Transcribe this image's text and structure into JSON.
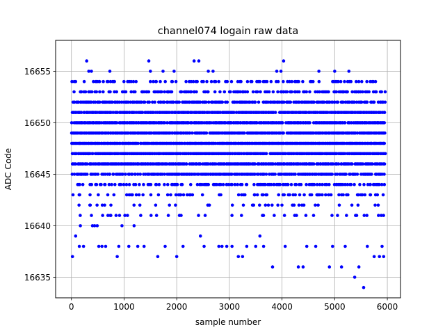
{
  "chart_data": {
    "type": "scatter",
    "title": "channel074 logain raw data",
    "xlabel": "sample number",
    "ylabel": "ADC Code",
    "xlim": [
      -300,
      6250
    ],
    "ylim": [
      16633,
      16658
    ],
    "xticks": [
      0,
      1000,
      2000,
      3000,
      4000,
      5000,
      6000
    ],
    "yticks": [
      16635,
      16640,
      16645,
      16650,
      16655
    ],
    "grid": true,
    "marker_color": "#0000ff",
    "n_samples": 5950,
    "dense_levels": [
      16641,
      16642,
      16643,
      16644,
      16645,
      16646,
      16647,
      16648,
      16649,
      16650,
      16651,
      16652,
      16653,
      16654
    ],
    "sparse_points": [
      {
        "x": 20,
        "y": 16637
      },
      {
        "x": 80,
        "y": 16639
      },
      {
        "x": 150,
        "y": 16638
      },
      {
        "x": 170,
        "y": 16640
      },
      {
        "x": 230,
        "y": 16638
      },
      {
        "x": 290,
        "y": 16656
      },
      {
        "x": 330,
        "y": 16655
      },
      {
        "x": 380,
        "y": 16655
      },
      {
        "x": 400,
        "y": 16640
      },
      {
        "x": 440,
        "y": 16640
      },
      {
        "x": 490,
        "y": 16640
      },
      {
        "x": 520,
        "y": 16638
      },
      {
        "x": 580,
        "y": 16638
      },
      {
        "x": 650,
        "y": 16638
      },
      {
        "x": 730,
        "y": 16655
      },
      {
        "x": 870,
        "y": 16637
      },
      {
        "x": 900,
        "y": 16638
      },
      {
        "x": 960,
        "y": 16640
      },
      {
        "x": 1090,
        "y": 16638
      },
      {
        "x": 1190,
        "y": 16640
      },
      {
        "x": 1260,
        "y": 16638
      },
      {
        "x": 1380,
        "y": 16638
      },
      {
        "x": 1470,
        "y": 16656
      },
      {
        "x": 1500,
        "y": 16655
      },
      {
        "x": 1640,
        "y": 16637
      },
      {
        "x": 1740,
        "y": 16655
      },
      {
        "x": 1780,
        "y": 16638
      },
      {
        "x": 1950,
        "y": 16655
      },
      {
        "x": 2000,
        "y": 16637
      },
      {
        "x": 2120,
        "y": 16638
      },
      {
        "x": 2330,
        "y": 16656
      },
      {
        "x": 2420,
        "y": 16656
      },
      {
        "x": 2450,
        "y": 16639
      },
      {
        "x": 2520,
        "y": 16638
      },
      {
        "x": 2600,
        "y": 16655
      },
      {
        "x": 2690,
        "y": 16655
      },
      {
        "x": 2800,
        "y": 16638
      },
      {
        "x": 2860,
        "y": 16638
      },
      {
        "x": 2950,
        "y": 16638
      },
      {
        "x": 3050,
        "y": 16638
      },
      {
        "x": 3170,
        "y": 16637
      },
      {
        "x": 3250,
        "y": 16637
      },
      {
        "x": 3330,
        "y": 16638
      },
      {
        "x": 3500,
        "y": 16638
      },
      {
        "x": 3580,
        "y": 16639
      },
      {
        "x": 3650,
        "y": 16638
      },
      {
        "x": 3820,
        "y": 16636
      },
      {
        "x": 3900,
        "y": 16655
      },
      {
        "x": 3980,
        "y": 16655
      },
      {
        "x": 4030,
        "y": 16656
      },
      {
        "x": 4060,
        "y": 16638
      },
      {
        "x": 4310,
        "y": 16636
      },
      {
        "x": 4400,
        "y": 16636
      },
      {
        "x": 4470,
        "y": 16638
      },
      {
        "x": 4640,
        "y": 16638
      },
      {
        "x": 4700,
        "y": 16655
      },
      {
        "x": 4900,
        "y": 16636
      },
      {
        "x": 4960,
        "y": 16638
      },
      {
        "x": 5000,
        "y": 16655
      },
      {
        "x": 5130,
        "y": 16636
      },
      {
        "x": 5200,
        "y": 16638
      },
      {
        "x": 5270,
        "y": 16655
      },
      {
        "x": 5380,
        "y": 16635
      },
      {
        "x": 5460,
        "y": 16636
      },
      {
        "x": 5550,
        "y": 16634
      },
      {
        "x": 5620,
        "y": 16638
      },
      {
        "x": 5750,
        "y": 16637
      },
      {
        "x": 5850,
        "y": 16637
      },
      {
        "x": 5900,
        "y": 16638
      },
      {
        "x": 5930,
        "y": 16637
      }
    ]
  }
}
